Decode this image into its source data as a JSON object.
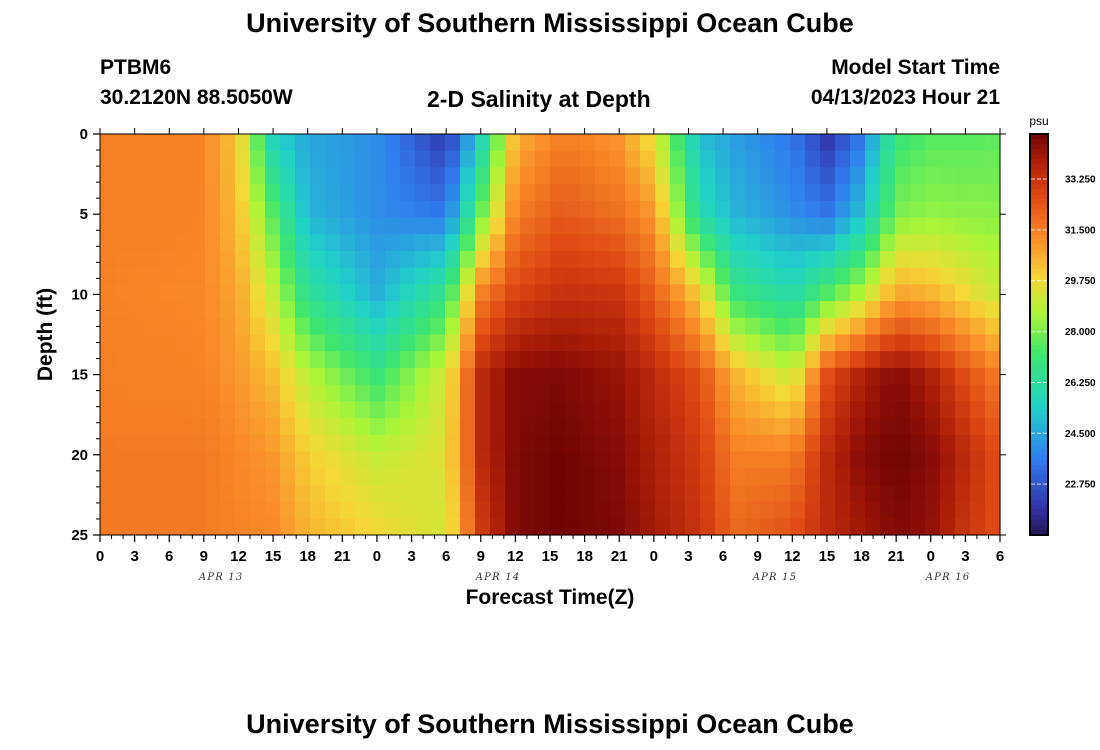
{
  "page": {
    "title": "University of Southern Mississippi Ocean Cube",
    "footer_title": "University of Southern Mississippi Ocean Cube",
    "station": "PTBM6",
    "coords": "30.2120N  88.5050W",
    "subtitle": "2-D Salinity at Depth",
    "model_start_label": "Model Start Time",
    "model_start_value": "04/13/2023 Hour 21"
  },
  "chart_data": {
    "type": "heatmap",
    "title": "2-D Salinity at Depth",
    "xlabel": "Forecast Time(Z)",
    "ylabel": "Depth (ft)",
    "x_tick_labels": [
      "0",
      "3",
      "6",
      "9",
      "12",
      "15",
      "18",
      "21",
      "0",
      "3",
      "6",
      "9",
      "12",
      "15",
      "18",
      "21",
      "0",
      "3",
      "6",
      "9",
      "12",
      "15",
      "18",
      "21",
      "0",
      "3",
      "6"
    ],
    "date_labels": [
      {
        "label": "APR 13",
        "tick_index": 3.5
      },
      {
        "label": "APR 14",
        "tick_index": 11.5
      },
      {
        "label": "APR 15",
        "tick_index": 19.5
      },
      {
        "label": "APR 16",
        "tick_index": 24.5
      }
    ],
    "x_range_hours": [
      0,
      78
    ],
    "y_ticks": [
      0,
      5,
      10,
      15,
      20,
      25
    ],
    "y_range_ft": [
      0,
      25
    ],
    "y_inverted": true,
    "colorbar": {
      "unit": "psu",
      "min": 21.0,
      "max": 34.8,
      "tick_values": [
        33.25,
        31.5,
        29.75,
        28.0,
        26.25,
        24.5,
        22.75
      ],
      "tick_labels": [
        "33.250",
        "31.500",
        "29.750",
        "28.000",
        "26.250",
        "24.500",
        "22.750"
      ]
    },
    "grid_columns": 60,
    "grid_rows": 24,
    "field_description": "Approximate salinity field (psu) reconstructed at key times (hours) and depths (ft)",
    "field_times": [
      0,
      9,
      12,
      15,
      18,
      24,
      30,
      33,
      36,
      40,
      45,
      48,
      52,
      55,
      60,
      63,
      66,
      69,
      72,
      75,
      78
    ],
    "field_depths": [
      0,
      5,
      10,
      15,
      20,
      25
    ],
    "field_values": [
      [
        31.5,
        31.5,
        31.4,
        31.5,
        31.6,
        31.6
      ],
      [
        31.4,
        31.4,
        31.3,
        31.4,
        31.6,
        31.6
      ],
      [
        30.0,
        30.3,
        30.7,
        31.0,
        31.3,
        31.4
      ],
      [
        25.5,
        27.5,
        29.0,
        30.3,
        31.0,
        31.3
      ],
      [
        24.5,
        24.8,
        26.5,
        28.8,
        30.0,
        30.5
      ],
      [
        24.0,
        24.0,
        24.7,
        27.0,
        29.0,
        29.8
      ],
      [
        22.0,
        23.5,
        26.8,
        29.3,
        29.5,
        29.2
      ],
      [
        25.5,
        27.8,
        31.5,
        33.5,
        33.5,
        33.0
      ],
      [
        30.5,
        31.5,
        32.8,
        34.5,
        34.6,
        34.6
      ],
      [
        31.5,
        32.3,
        33.3,
        34.6,
        34.8,
        34.8
      ],
      [
        31.0,
        31.8,
        33.2,
        34.2,
        34.5,
        34.6
      ],
      [
        29.5,
        31.0,
        32.2,
        33.5,
        33.8,
        34.0
      ],
      [
        25.0,
        26.0,
        30.0,
        32.5,
        33.0,
        33.2
      ],
      [
        24.3,
        24.8,
        27.0,
        30.5,
        31.5,
        32.0
      ],
      [
        23.5,
        24.0,
        26.0,
        29.0,
        31.5,
        32.5
      ],
      [
        22.0,
        23.5,
        27.5,
        32.5,
        33.5,
        33.5
      ],
      [
        23.5,
        25.0,
        28.8,
        33.8,
        34.5,
        34.0
      ],
      [
        27.0,
        28.0,
        30.8,
        34.5,
        34.8,
        34.6
      ],
      [
        27.5,
        28.3,
        30.5,
        33.8,
        34.5,
        34.3
      ],
      [
        27.5,
        28.2,
        29.8,
        32.5,
        33.5,
        33.2
      ],
      [
        27.6,
        28.2,
        29.0,
        31.5,
        32.5,
        32.5
      ]
    ]
  }
}
